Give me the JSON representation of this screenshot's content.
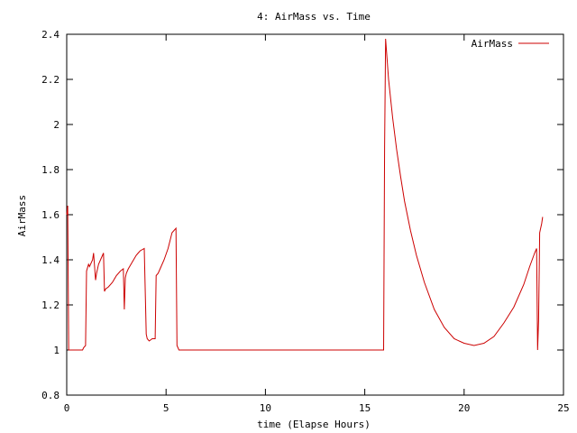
{
  "chart_data": {
    "type": "line",
    "title": "4: AirMass vs. Time",
    "xlabel": "time (Elapse Hours)",
    "ylabel": "AirMass",
    "xlim": [
      0,
      25
    ],
    "ylim": [
      0.8,
      2.4
    ],
    "xticks": [
      0,
      5,
      10,
      15,
      20,
      25
    ],
    "xtick_labels": [
      "0",
      "5",
      "10",
      "15",
      "20",
      "25"
    ],
    "yticks": [
      0.8,
      1,
      1.2,
      1.4,
      1.6,
      1.8,
      2,
      2.2,
      2.4
    ],
    "ytick_labels": [
      "0.8",
      "1",
      "1.2",
      "1.4",
      "1.6",
      "1.8",
      "2",
      "2.2",
      "2.4"
    ],
    "grid": false,
    "legend": "top-right",
    "series": [
      {
        "name": "AirMass",
        "color": "#cc0000",
        "x": [
          0,
          0.05,
          0.1,
          0.15,
          0.2,
          0.5,
          0.7,
          0.8,
          0.85,
          0.95,
          1.0,
          1.1,
          1.15,
          1.3,
          1.35,
          1.45,
          1.5,
          1.6,
          1.7,
          1.85,
          1.9,
          1.95,
          2.1,
          2.3,
          2.5,
          2.7,
          2.85,
          2.9,
          2.95,
          3.0,
          3.1,
          3.3,
          3.5,
          3.6,
          3.7,
          3.9,
          4.0,
          4.05,
          4.15,
          4.3,
          4.45,
          4.5,
          4.6,
          4.7,
          4.9,
          5.1,
          5.3,
          5.5,
          5.55,
          5.65,
          5.7,
          15.95,
          16.0,
          16.05,
          16.1,
          16.2,
          16.4,
          16.6,
          16.8,
          17.0,
          17.3,
          17.6,
          18.0,
          18.5,
          19.0,
          19.5,
          20.0,
          20.5,
          21.0,
          21.5,
          22.0,
          22.5,
          23.0,
          23.3,
          23.55,
          23.65,
          23.7,
          23.75,
          23.8,
          23.9,
          23.95
        ],
        "y": [
          1.6,
          1.64,
          1.0,
          1.0,
          1.0,
          1.0,
          1.0,
          1.0,
          1.01,
          1.02,
          1.35,
          1.38,
          1.37,
          1.4,
          1.43,
          1.31,
          1.34,
          1.38,
          1.4,
          1.43,
          1.26,
          1.27,
          1.28,
          1.3,
          1.33,
          1.35,
          1.36,
          1.18,
          1.32,
          1.34,
          1.36,
          1.39,
          1.42,
          1.43,
          1.44,
          1.45,
          1.07,
          1.05,
          1.04,
          1.05,
          1.05,
          1.33,
          1.34,
          1.36,
          1.4,
          1.45,
          1.52,
          1.54,
          1.02,
          1.0,
          1.0,
          1.0,
          1.9,
          2.38,
          2.32,
          2.2,
          2.03,
          1.89,
          1.77,
          1.66,
          1.53,
          1.42,
          1.3,
          1.18,
          1.1,
          1.05,
          1.03,
          1.02,
          1.03,
          1.06,
          1.12,
          1.19,
          1.29,
          1.37,
          1.43,
          1.45,
          1.0,
          1.13,
          1.52,
          1.56,
          1.59
        ]
      }
    ]
  }
}
